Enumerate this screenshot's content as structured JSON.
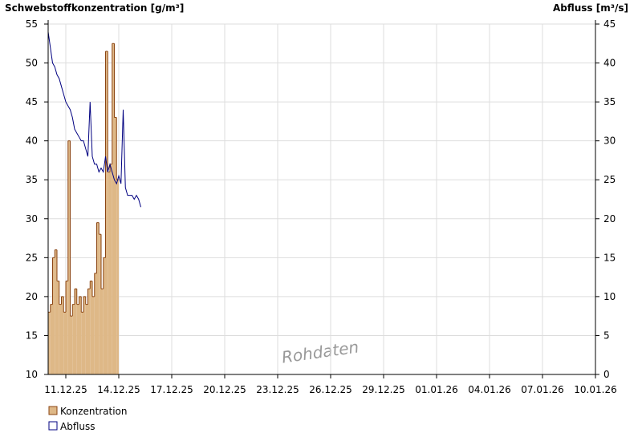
{
  "chart_data": {
    "type": "bar-line",
    "y_title": "Schwebstoffkonzentration [g/m³]",
    "y2_title": "Abfluss [m³/s]",
    "annotation": "Rohdaten",
    "xlim": [
      0,
      31
    ],
    "xticks": [
      {
        "value": 1,
        "label": "11.12.25"
      },
      {
        "value": 4,
        "label": "14.12.25"
      },
      {
        "value": 7,
        "label": "17.12.25"
      },
      {
        "value": 10,
        "label": "20.12.25"
      },
      {
        "value": 13,
        "label": "23.12.25"
      },
      {
        "value": 16,
        "label": "26.12.25"
      },
      {
        "value": 19,
        "label": "29.12.25"
      },
      {
        "value": 22,
        "label": "01.01.26"
      },
      {
        "value": 25,
        "label": "04.01.26"
      },
      {
        "value": 28,
        "label": "07.01.26"
      },
      {
        "value": 31,
        "label": "10.01.26"
      }
    ],
    "ylim": [
      10,
      55
    ],
    "yticks": [
      10,
      15,
      20,
      25,
      30,
      35,
      40,
      45,
      50,
      55
    ],
    "y2lim": [
      0,
      45
    ],
    "y2ticks": [
      0,
      5,
      10,
      15,
      20,
      25,
      30,
      35,
      40,
      45
    ],
    "grid": true,
    "series": [
      {
        "name": "Konzentration",
        "type": "bar",
        "color": "#deb887",
        "edge_color": "#8b4513",
        "x": [
          0,
          0.125,
          0.25,
          0.375,
          0.5,
          0.625,
          0.75,
          0.875,
          1,
          1.125,
          1.25,
          1.375,
          1.5,
          1.625,
          1.75,
          1.875,
          2,
          2.125,
          2.25,
          2.375,
          2.5,
          2.625,
          2.75,
          2.875,
          3,
          3.125,
          3.25,
          3.375,
          3.5,
          3.625,
          3.75,
          3.875
        ],
        "values": [
          18,
          19,
          25,
          26,
          22,
          19,
          20,
          18,
          22,
          40,
          17.5,
          19,
          21,
          19,
          20,
          18,
          20,
          19,
          21,
          22,
          20,
          23,
          29.5,
          28,
          21,
          25,
          51.5,
          36,
          37,
          52.5,
          43,
          35
        ]
      },
      {
        "name": "Abfluss",
        "type": "line",
        "axis": "y2",
        "color": "#000080",
        "x": [
          0,
          0.125,
          0.25,
          0.375,
          0.5,
          0.625,
          0.75,
          0.875,
          1,
          1.125,
          1.25,
          1.375,
          1.5,
          1.625,
          1.75,
          1.875,
          2,
          2.125,
          2.25,
          2.375,
          2.5,
          2.625,
          2.75,
          2.875,
          3,
          3.125,
          3.25,
          3.375,
          3.5,
          3.625,
          3.75,
          3.875,
          4,
          4.125,
          4.25,
          4.375,
          4.5,
          4.625,
          4.75,
          4.875,
          5,
          5.125,
          5.25
        ],
        "values": [
          44,
          42,
          40,
          39.5,
          38.5,
          38,
          37,
          36,
          35,
          34.5,
          34,
          33,
          31.5,
          31,
          30.5,
          30,
          30,
          29,
          28,
          35,
          28,
          27,
          27,
          26,
          26.5,
          26,
          28,
          26,
          27,
          26,
          25,
          24.5,
          25.5,
          24.5,
          34,
          24,
          23,
          23,
          23,
          22.5,
          23,
          22.5,
          21.5
        ]
      }
    ],
    "legend": "bottom-left"
  }
}
